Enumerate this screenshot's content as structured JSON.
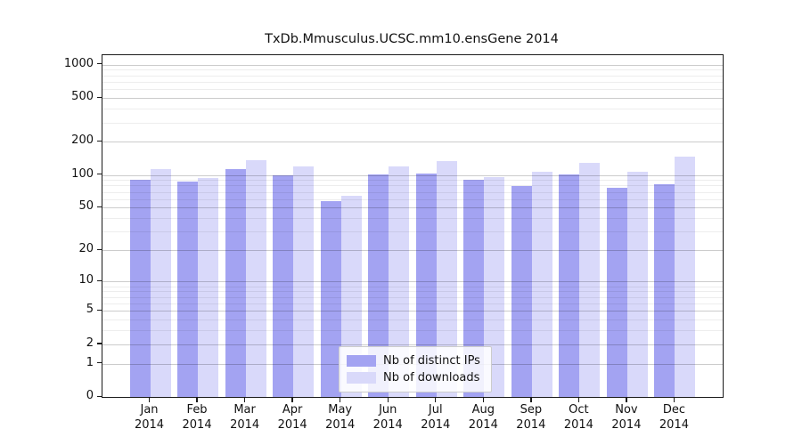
{
  "title": "TxDb.Mmusculus.UCSC.mm10.ensGene 2014",
  "chart_data": {
    "type": "bar",
    "title": "TxDb.Mmusculus.UCSC.mm10.ensGene 2014",
    "xlabel": "",
    "ylabel": "",
    "yscale": "log1p",
    "ylim": [
      0,
      1217
    ],
    "grid": true,
    "legend_position": "bottom-center-inside",
    "yticks_major": [
      0,
      1,
      2,
      5,
      10,
      20,
      50,
      100,
      200,
      500,
      1000
    ],
    "yticks_minor": [
      3,
      4,
      6,
      7,
      8,
      9,
      30,
      40,
      60,
      70,
      80,
      90,
      300,
      400,
      600,
      700,
      800,
      900
    ],
    "categories": [
      {
        "month": "Jan",
        "year": "2014"
      },
      {
        "month": "Feb",
        "year": "2014"
      },
      {
        "month": "Mar",
        "year": "2014"
      },
      {
        "month": "Apr",
        "year": "2014"
      },
      {
        "month": "May",
        "year": "2014"
      },
      {
        "month": "Jun",
        "year": "2014"
      },
      {
        "month": "Jul",
        "year": "2014"
      },
      {
        "month": "Aug",
        "year": "2014"
      },
      {
        "month": "Sep",
        "year": "2014"
      },
      {
        "month": "Oct",
        "year": "2014"
      },
      {
        "month": "Nov",
        "year": "2014"
      },
      {
        "month": "Dec",
        "year": "2014"
      }
    ],
    "series": [
      {
        "name": "Nb of distinct IPs",
        "color": "#a3a3f2",
        "values": [
          90,
          87,
          114,
          100,
          58,
          101,
          103,
          90,
          80,
          101,
          77,
          83
        ]
      },
      {
        "name": "Nb of downloads",
        "color": "#d9d9fa",
        "values": [
          113,
          94,
          137,
          120,
          65,
          120,
          134,
          95,
          106,
          129,
          107,
          148
        ]
      }
    ]
  },
  "legend": {
    "items": [
      {
        "label": "Nb of distinct IPs",
        "color": "#a3a3f2"
      },
      {
        "label": "Nb of downloads",
        "color": "#d9d9fa"
      }
    ]
  }
}
